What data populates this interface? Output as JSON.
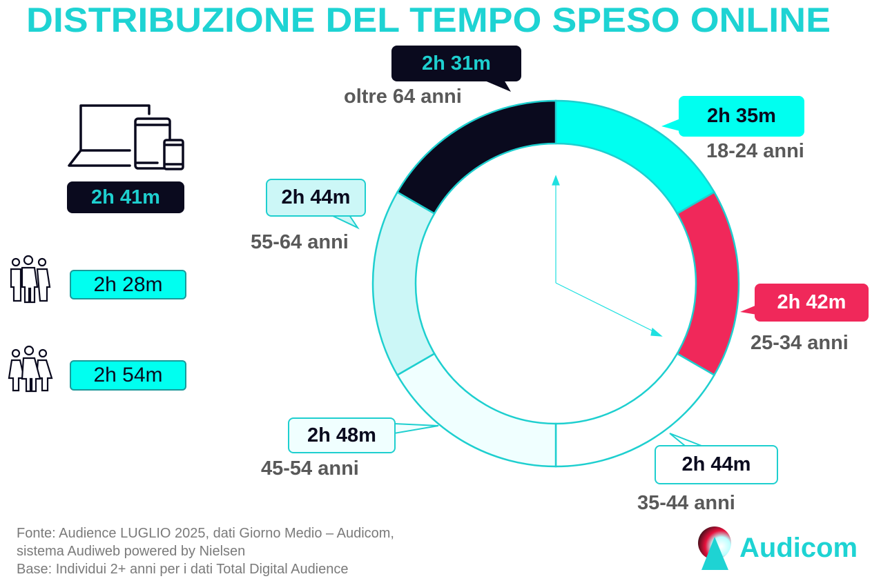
{
  "title": "DISTRIBUZIONE DEL TEMPO SPESO ONLINE",
  "colors": {
    "title": "#1ED3D3",
    "accent": "#00FFF0",
    "red": "#F0285A",
    "dark": "#0A0A1E",
    "border": "#1ECFCF",
    "label": "#595959"
  },
  "left_panel": {
    "total": {
      "icon": "devices-icon",
      "value": "2h 41m"
    },
    "men": {
      "icon": "men-group-icon",
      "value": "2h 28m"
    },
    "women": {
      "icon": "women-group-icon",
      "value": "2h 54m"
    }
  },
  "chart_data": {
    "type": "pie",
    "style": "donut",
    "title": "",
    "categories": [
      "18-24 anni",
      "25-34 anni",
      "35-44 anni",
      "45-54 anni",
      "55-64 anni",
      "oltre 64 anni"
    ],
    "values": [
      "2h 35m",
      "2h 42m",
      "2h 44m",
      "2h 48m",
      "2h 44m",
      "2h 31m"
    ],
    "values_minutes": [
      155,
      162,
      164,
      168,
      164,
      151
    ],
    "segment_share": [
      1,
      1,
      1,
      1,
      1,
      1
    ],
    "segment_colors": [
      "#00FFF0",
      "#F0285A",
      "#FFFFFF",
      "#F0FFFF",
      "#CCF7F7",
      "#0A0A1E"
    ]
  },
  "footer": {
    "line1": "Fonte: Audience LUGLIO 2025, dati Giorno Medio – Audicom,",
    "line2": "sistema Audiweb powered by Nielsen",
    "line3": "Base: Individui 2+ anni per i dati Total Digital Audience"
  },
  "logo": {
    "text": "Audicom"
  }
}
